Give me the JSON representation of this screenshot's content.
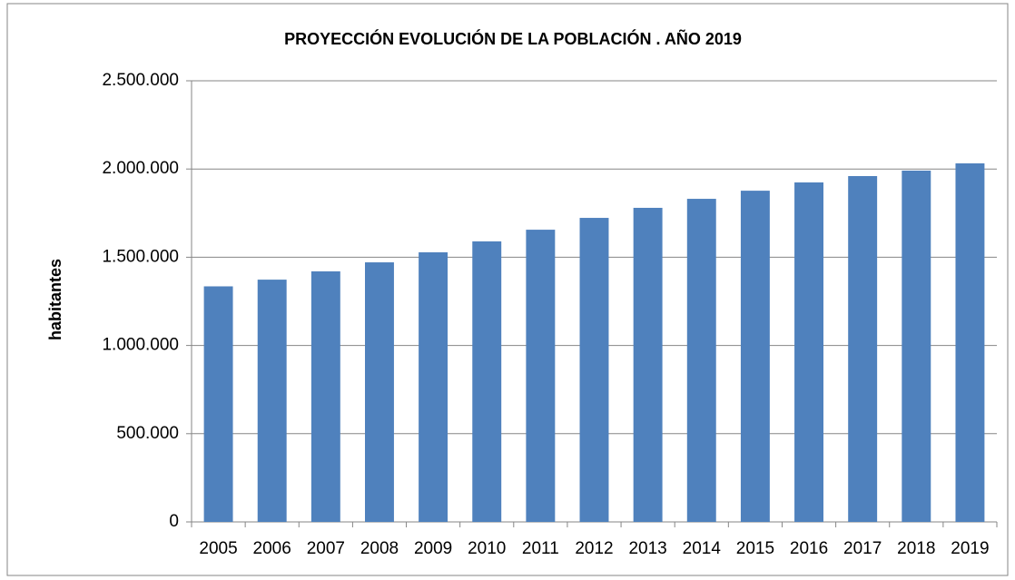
{
  "chart_data": {
    "type": "bar",
    "title": "PROYECCIÓN EVOLUCIÓN DE LA POBLACIÓN . AÑO 2019",
    "y_label": "habitantes",
    "categories": [
      "2005",
      "2006",
      "2007",
      "2008",
      "2009",
      "2010",
      "2011",
      "2012",
      "2013",
      "2014",
      "2015",
      "2016",
      "2017",
      "2018",
      "2019"
    ],
    "values": [
      1335000,
      1373000,
      1420000,
      1471000,
      1528000,
      1590000,
      1656000,
      1723000,
      1780000,
      1831000,
      1877000,
      1924000,
      1960000,
      1991000,
      2032000
    ],
    "color": "#4f81bd",
    "ylim": [
      0,
      2500000
    ],
    "yticks": [
      0,
      {
        "value": 500000,
        "label": "500.000"
      },
      {
        "value": 1000000,
        "label": "1.000.000"
      },
      {
        "value": 1500000,
        "label": "1.500.000"
      },
      {
        "value": 2000000,
        "label": "2.000.000"
      },
      {
        "value": 2500000,
        "label": "2.500.000"
      }
    ],
    "grid": true
  }
}
